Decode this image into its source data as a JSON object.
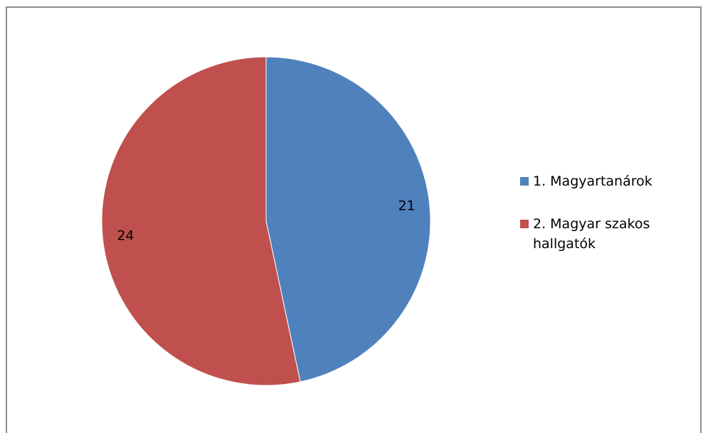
{
  "chart_data": {
    "type": "pie",
    "title": "",
    "categories": [
      "1. Magyartanárok",
      "2. Magyar szakos hallgatók"
    ],
    "values": [
      21,
      24
    ],
    "colors": [
      "#4f81bd",
      "#c0504d"
    ],
    "data_labels": [
      "21",
      "24"
    ],
    "legend_position": "right",
    "start_angle": "top, clockwise"
  }
}
